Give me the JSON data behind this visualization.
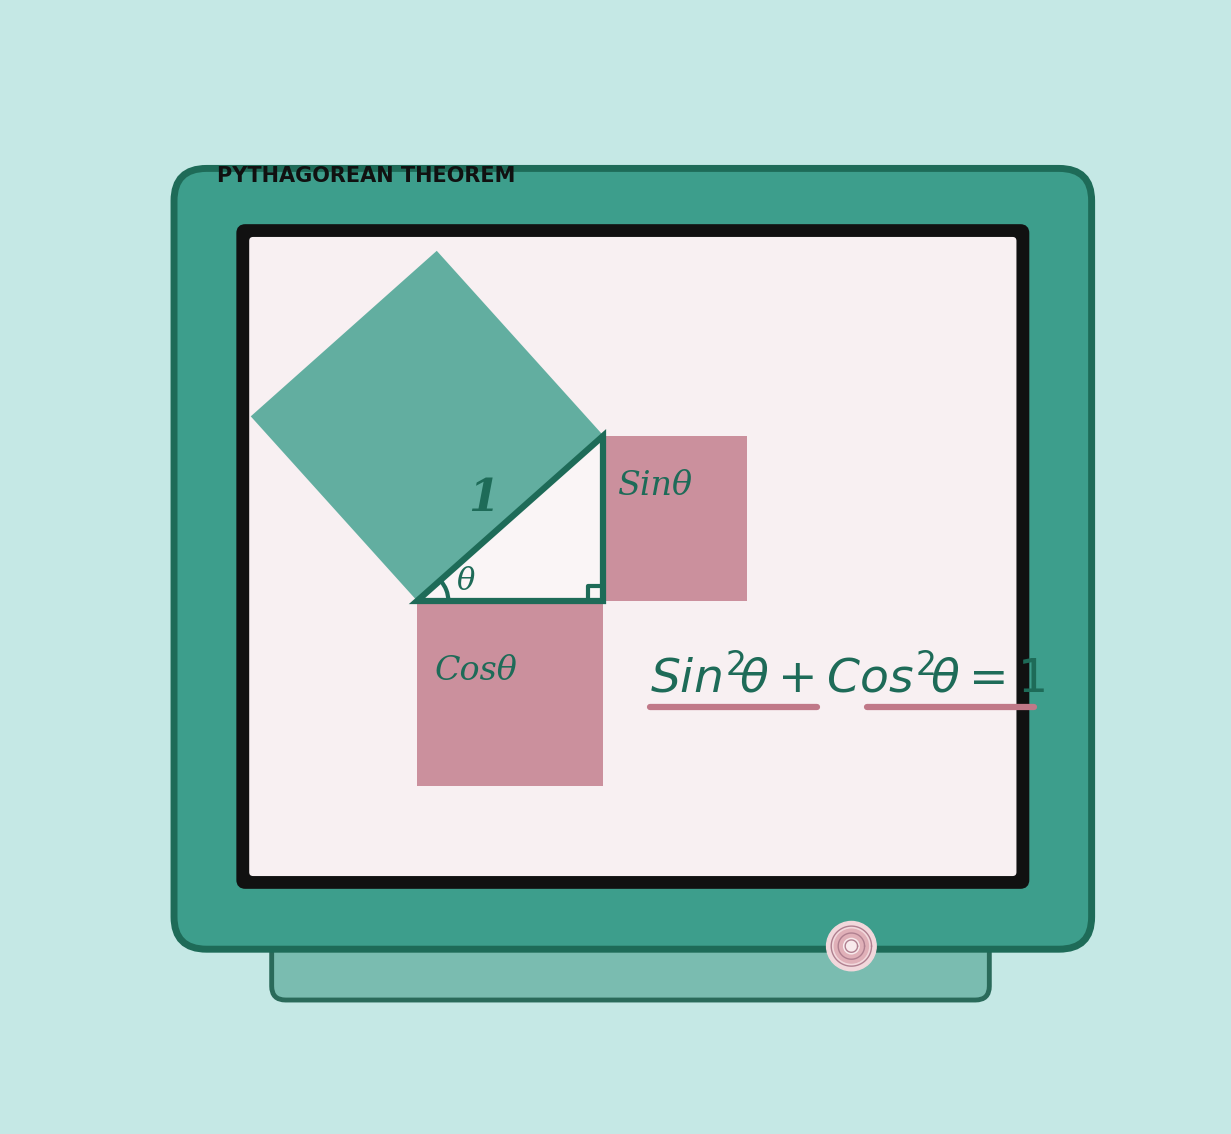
{
  "title": "PYTHAGOREAN THEOREM",
  "bg_color": "#c5e8e5",
  "teal_color": "#3d9e8c",
  "teal_dark": "#1e6b58",
  "teal_medium": "#2d8070",
  "pink_color": "#c07888",
  "screen_bg": "#f8f0f2",
  "sin_label": "Sinθ",
  "cos_label": "Cosθ",
  "hyp_label": "1",
  "theta_label": "θ",
  "laptop_base_color": "#7abcb0",
  "laptop_base_dark": "#2a6a5a",
  "screen_border": "#1a1a1a",
  "cam_outer": "#f2d8dc",
  "cam_mid": "#e0b0b8",
  "cam_inner": "#f8eaec"
}
